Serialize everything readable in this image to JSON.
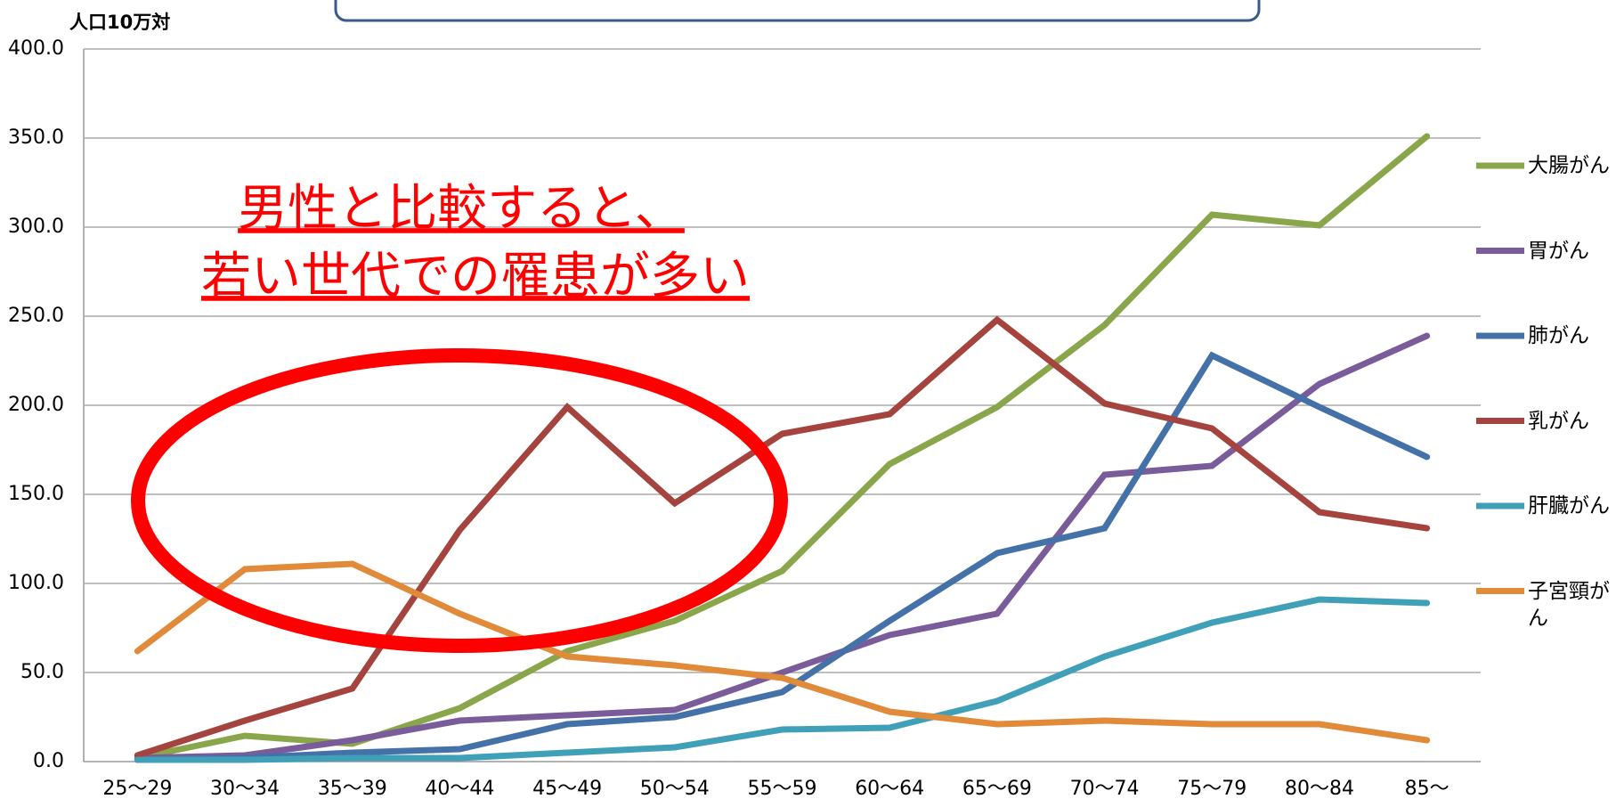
{
  "chart_data": {
    "type": "line",
    "y_label": "人口10万対",
    "annotations": [
      "男性と比較すると、",
      "若い世代での罹患が多い"
    ],
    "categories": [
      "25～29",
      "30～34",
      "35～39",
      "40～44",
      "45～49",
      "50～54",
      "55～59",
      "60～64",
      "65～69",
      "70～74",
      "75～79",
      "80～84",
      "85～"
    ],
    "series": [
      {
        "name": "大腸がん",
        "color": "#8aa64a",
        "values": [
          2,
          14.5,
          10,
          30,
          62,
          79,
          107,
          167,
          199,
          245,
          307,
          301,
          351
        ]
      },
      {
        "name": "胃がん",
        "color": "#7a5c9a",
        "values": [
          2,
          3.5,
          12,
          23,
          26,
          29,
          50,
          71,
          83,
          161,
          166,
          212,
          239
        ]
      },
      {
        "name": "肺がん",
        "color": "#4472a8",
        "values": [
          1,
          2,
          5,
          7,
          21,
          25,
          39,
          79,
          117,
          131,
          228,
          199,
          171
        ]
      },
      {
        "name": "乳がん",
        "color": "#a5443f",
        "values": [
          3.5,
          23,
          41,
          130,
          199,
          145,
          184,
          195,
          248,
          201,
          187,
          140,
          131
        ]
      },
      {
        "name": "肝臓がん",
        "color": "#3fa0b8",
        "values": [
          1,
          1,
          2,
          2,
          5,
          8,
          18,
          19,
          34,
          59,
          78,
          91,
          89
        ]
      },
      {
        "name": "子宮頸がん",
        "color": "#e08a3a",
        "values": [
          62,
          108,
          111,
          83,
          59,
          54,
          47,
          28,
          21,
          23,
          21,
          21,
          12
        ]
      }
    ],
    "ylim": [
      0,
      400
    ],
    "yticks": [
      {
        "value": 0,
        "label": "0.0"
      },
      {
        "value": 50,
        "label": "50.0"
      },
      {
        "value": 100,
        "label": "100.0"
      },
      {
        "value": 150,
        "label": "150.0"
      },
      {
        "value": 200,
        "label": "200.0"
      },
      {
        "value": 250,
        "label": "250.0"
      },
      {
        "value": 300,
        "label": "300.0"
      },
      {
        "value": 350,
        "label": "350.0"
      },
      {
        "value": 400,
        "label": "400.0"
      }
    ],
    "grid": true
  }
}
